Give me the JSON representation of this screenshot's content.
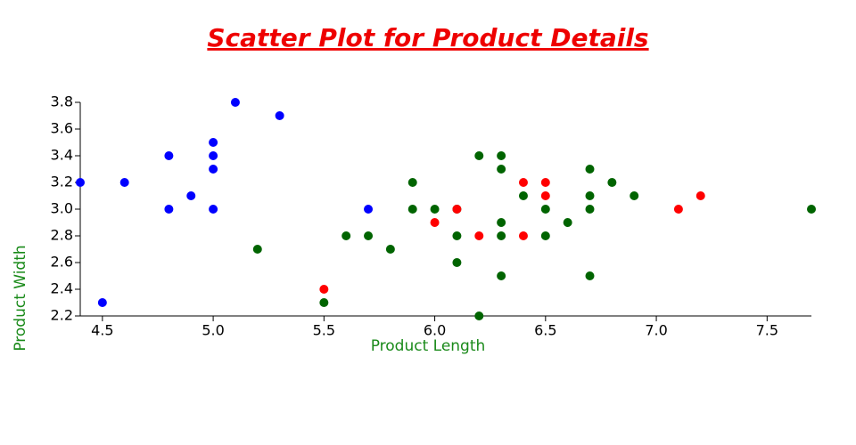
{
  "chart_data": {
    "type": "scatter",
    "title": "Scatter Plot for Product Details",
    "x_label": "Product Length",
    "y_label": "Product Width",
    "xlim": [
      4.4,
      7.7
    ],
    "ylim": [
      2.2,
      3.8
    ],
    "xticks": [
      4.5,
      {
        "value": 5,
        "label": "5.0"
      },
      5.5,
      {
        "value": 6,
        "label": "6.0"
      },
      6.5,
      {
        "value": 7,
        "label": "7.0"
      },
      7.5
    ],
    "yticks": [
      2.2,
      2.4,
      2.6,
      2.8,
      {
        "value": 3,
        "label": "3.0"
      },
      3.2,
      3.4,
      3.6,
      3.8
    ],
    "grid": false,
    "series": [
      {
        "color": "#0000ff",
        "x": [
          4.4,
          4.5,
          4.6,
          4.8,
          4.8,
          4.9,
          5.0,
          5.0,
          5.0,
          5.0,
          5.1,
          5.3,
          5.7
        ],
        "values": [
          3.2,
          2.3,
          3.2,
          3.4,
          3.0,
          3.1,
          3.5,
          3.4,
          3.3,
          3.0,
          3.8,
          3.7,
          3.0
        ]
      },
      {
        "color": "#006400",
        "x": [
          5.2,
          5.5,
          5.6,
          5.7,
          5.8,
          5.9,
          5.9,
          6.0,
          6.1,
          6.1,
          6.1,
          6.2,
          6.2,
          6.3,
          6.3,
          6.3,
          6.3,
          6.3,
          6.4,
          6.5,
          6.5,
          6.6,
          6.7,
          6.7,
          6.7,
          6.7,
          6.8,
          6.9,
          7.7
        ],
        "values": [
          2.7,
          2.3,
          2.8,
          2.8,
          2.7,
          3.2,
          3.0,
          3.0,
          2.8,
          2.6,
          3.0,
          3.4,
          2.2,
          3.4,
          3.3,
          2.9,
          2.8,
          2.5,
          3.1,
          3.0,
          2.8,
          2.9,
          3.3,
          3.1,
          3.0,
          2.5,
          3.2,
          3.1,
          3.0
        ]
      },
      {
        "color": "#ff0000",
        "x": [
          5.5,
          6.0,
          6.1,
          6.2,
          6.4,
          6.4,
          6.5,
          6.5,
          7.1,
          7.2
        ],
        "values": [
          2.4,
          2.9,
          3.0,
          2.8,
          3.2,
          2.8,
          3.2,
          3.1,
          3.0,
          3.1
        ]
      }
    ]
  }
}
